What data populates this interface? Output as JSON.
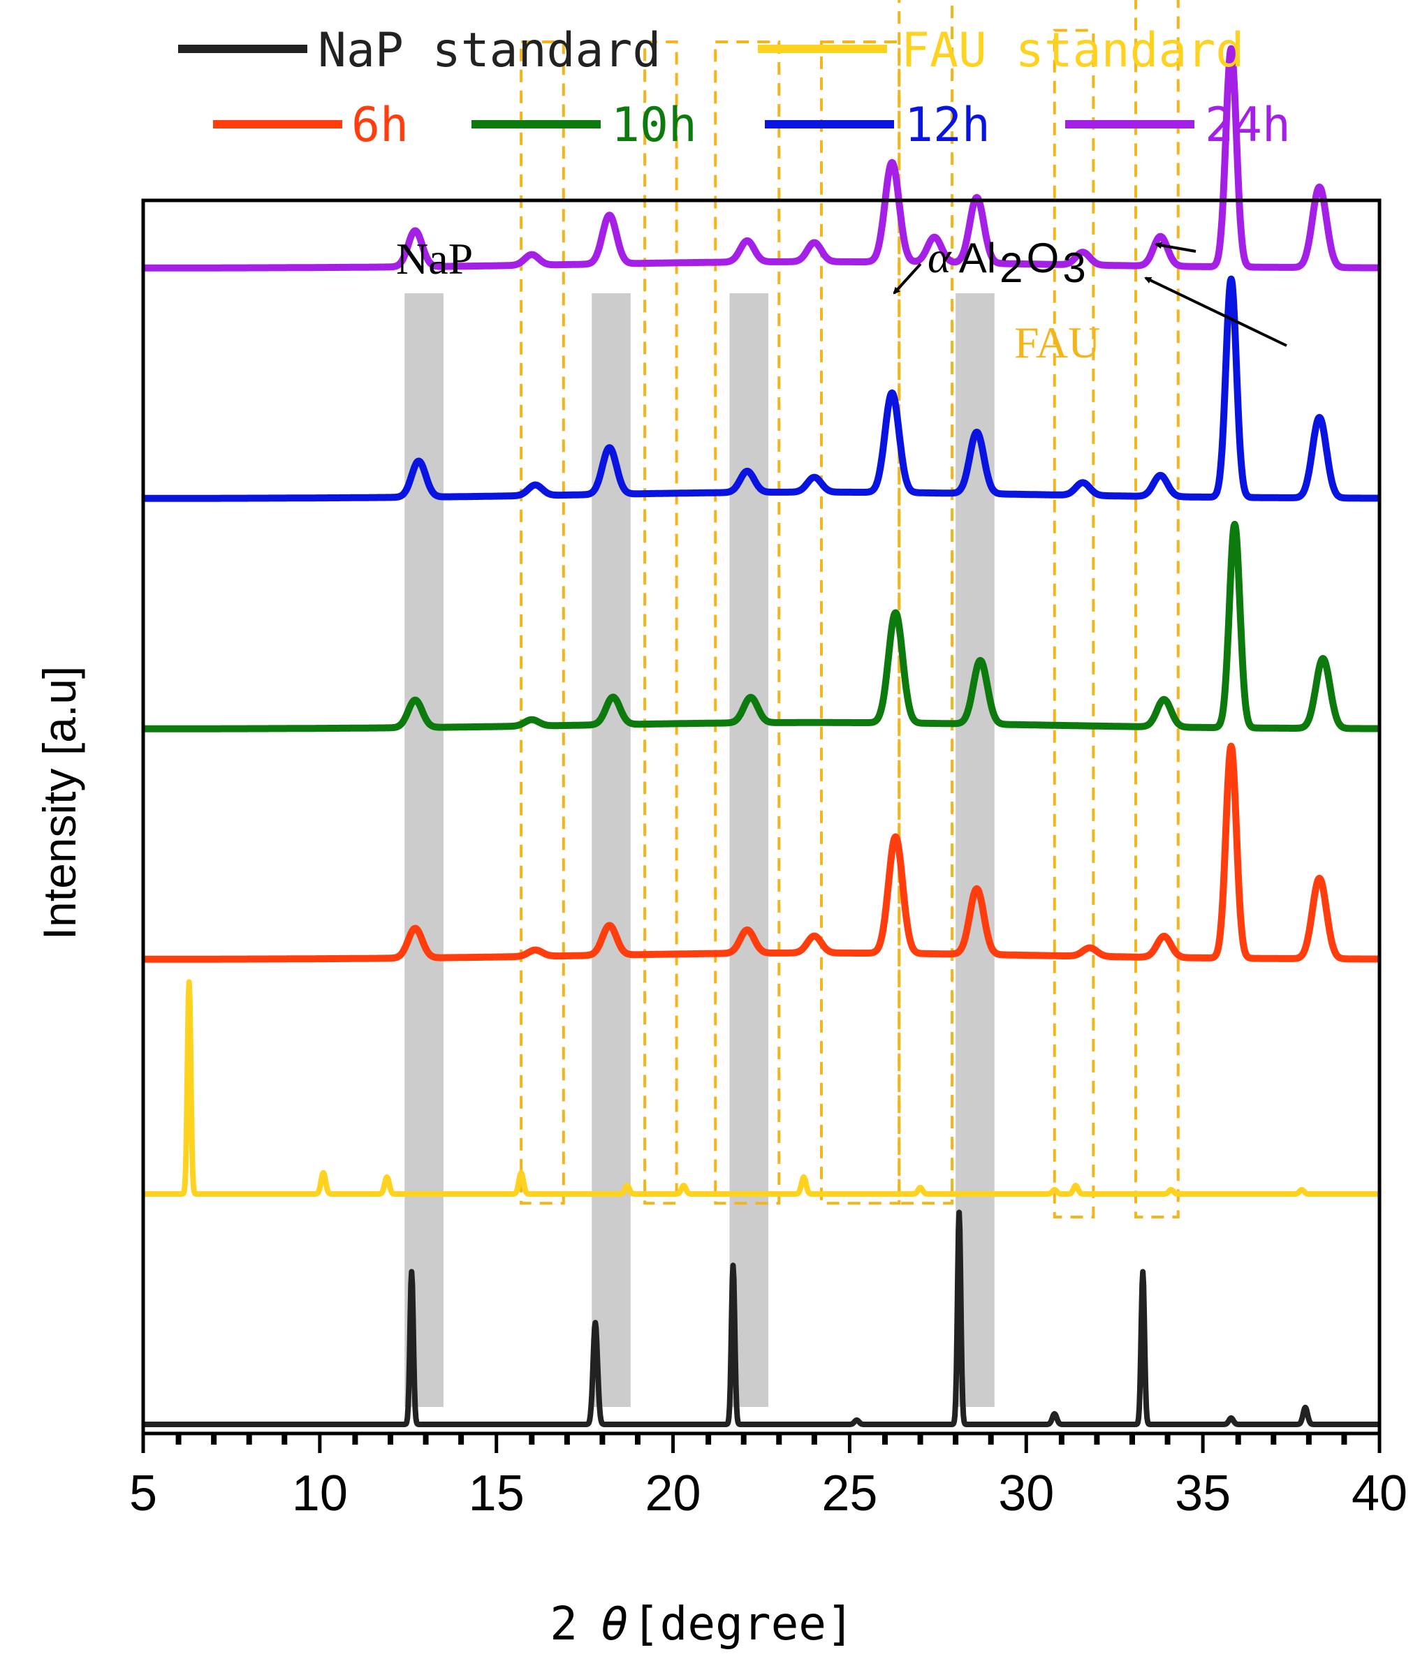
{
  "chart_data": {
    "type": "line",
    "title": "",
    "xlabel_prefix": "2",
    "xlabel_theta": "θ",
    "xlabel_suffix": "[degree]",
    "ylabel": "Intensity [a.u]",
    "xlim": [
      5,
      40
    ],
    "xticks": [
      "5",
      "10",
      "15",
      "20",
      "25",
      "30",
      "35",
      "40"
    ],
    "legend": [
      {
        "name": "NaP standard",
        "color": "#222222"
      },
      {
        "name": "FAU standard",
        "color": "#FFD21F"
      },
      {
        "name": "6h",
        "color": "#FF3D0D"
      },
      {
        "name": "10h",
        "color": "#0D7A0D"
      },
      {
        "name": "12h",
        "color": "#0A14E0"
      },
      {
        "name": "24h",
        "color": "#A520E6"
      }
    ],
    "series": [
      {
        "name": "NaP standard",
        "color": "#222222",
        "baseline": 0.0,
        "width": 0.09,
        "background": 0.0,
        "peaks": [
          [
            12.6,
            0.72
          ],
          [
            17.8,
            0.48
          ],
          [
            21.7,
            0.75
          ],
          [
            25.2,
            0.02
          ],
          [
            28.1,
            1.0
          ],
          [
            30.8,
            0.05
          ],
          [
            33.3,
            0.72
          ],
          [
            35.8,
            0.03
          ],
          [
            37.9,
            0.08
          ]
        ]
      },
      {
        "name": "FAU standard",
        "color": "#FFD21F",
        "baseline": 1.0,
        "width": 0.09,
        "background": 0.0,
        "peaks": [
          [
            6.3,
            1.0
          ],
          [
            10.1,
            0.1
          ],
          [
            11.9,
            0.08
          ],
          [
            15.7,
            0.1
          ],
          [
            18.7,
            0.04
          ],
          [
            20.3,
            0.04
          ],
          [
            23.7,
            0.08
          ],
          [
            27.0,
            0.03
          ],
          [
            30.8,
            0.02
          ],
          [
            31.4,
            0.04
          ],
          [
            34.1,
            0.02
          ],
          [
            37.8,
            0.02
          ]
        ]
      },
      {
        "name": "6h",
        "color": "#FF3D0D",
        "baseline": 2.0,
        "width": 0.28,
        "background": 0.02,
        "peaks": [
          [
            12.7,
            0.14
          ],
          [
            16.1,
            0.03
          ],
          [
            18.2,
            0.14
          ],
          [
            22.1,
            0.11
          ],
          [
            24.0,
            0.08
          ],
          [
            26.3,
            0.55
          ],
          [
            28.6,
            0.31
          ],
          [
            31.8,
            0.04
          ],
          [
            33.9,
            0.1
          ],
          [
            35.8,
            1.0
          ],
          [
            38.3,
            0.38
          ]
        ]
      },
      {
        "name": "10h",
        "color": "#0D7A0D",
        "baseline": 3.0,
        "width": 0.28,
        "background": 0.02,
        "peaks": [
          [
            12.7,
            0.13
          ],
          [
            16.0,
            0.03
          ],
          [
            18.3,
            0.13
          ],
          [
            22.2,
            0.12
          ],
          [
            26.3,
            0.52
          ],
          [
            28.7,
            0.3
          ],
          [
            33.9,
            0.13
          ],
          [
            35.9,
            0.96
          ],
          [
            38.4,
            0.33
          ]
        ]
      },
      {
        "name": "12h",
        "color": "#0A14E0",
        "baseline": 4.0,
        "width": 0.28,
        "background": 0.02,
        "peaks": [
          [
            12.8,
            0.17
          ],
          [
            16.1,
            0.05
          ],
          [
            18.2,
            0.22
          ],
          [
            22.1,
            0.1
          ],
          [
            24.0,
            0.07
          ],
          [
            26.2,
            0.47
          ],
          [
            28.6,
            0.29
          ],
          [
            31.6,
            0.06
          ],
          [
            33.8,
            0.1
          ],
          [
            35.8,
            1.03
          ],
          [
            38.3,
            0.38
          ]
        ]
      },
      {
        "name": "24h",
        "color": "#A520E6",
        "baseline": 5.0,
        "width": 0.28,
        "background": 0.02,
        "peaks": [
          [
            12.7,
            0.17
          ],
          [
            16.0,
            0.05
          ],
          [
            18.2,
            0.23
          ],
          [
            22.1,
            0.1
          ],
          [
            24.0,
            0.09
          ],
          [
            26.2,
            0.47
          ],
          [
            27.4,
            0.12
          ],
          [
            28.6,
            0.31
          ],
          [
            31.6,
            0.06
          ],
          [
            33.8,
            0.14
          ],
          [
            35.8,
            1.03
          ],
          [
            38.3,
            0.38
          ]
        ]
      }
    ],
    "nap_bands": [
      [
        12.4,
        13.5
      ],
      [
        17.7,
        18.8
      ],
      [
        21.6,
        22.7
      ],
      [
        28.0,
        29.1
      ]
    ],
    "fau_lines": [
      15.7,
      16.9,
      19.2,
      20.1,
      21.2,
      23.0,
      24.2,
      26.4,
      27.9
    ],
    "fau_boxes": [
      {
        "x": [
          15.7,
          16.9
        ],
        "y": [
          0.96,
          6.0
        ]
      },
      {
        "x": [
          19.2,
          20.1
        ],
        "y": [
          0.96,
          6.0
        ]
      },
      {
        "x": [
          21.2,
          23.0
        ],
        "y": [
          0.96,
          6.0
        ]
      },
      {
        "x": [
          24.2,
          26.4
        ],
        "y": [
          0.96,
          6.0
        ]
      },
      {
        "x": [
          26.4,
          27.9
        ],
        "y": [
          0.96,
          6.2
        ]
      },
      {
        "x": [
          30.8,
          31.9
        ],
        "y": [
          0.9,
          6.05
        ]
      },
      {
        "x": [
          33.1,
          34.3
        ],
        "y": [
          0.9,
          6.2
        ]
      }
    ],
    "annotations": {
      "nap_label": "NaP",
      "fau_label": "FAU",
      "alpha_symbol": "α",
      "alpha_formula": "Al",
      "alpha_sub1": "2",
      "alpha_o": "O",
      "alpha_sub2": "3"
    },
    "annotation_colors": {
      "nap_band": "#cccccc",
      "fau_dash": "#F4B51A",
      "text": "#000000"
    }
  }
}
